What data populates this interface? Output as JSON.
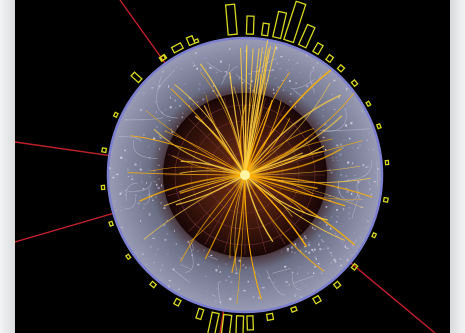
{
  "image": {
    "subject": "particle-collision-event-display",
    "colors": {
      "background": "#000000",
      "track": "#ffb000",
      "track_hot": "#ffd040",
      "detector_ring": "#7d7fd0",
      "inner_core": "#1a0707",
      "deposit": "#d8d820",
      "escape_line": "#c0202a"
    }
  }
}
